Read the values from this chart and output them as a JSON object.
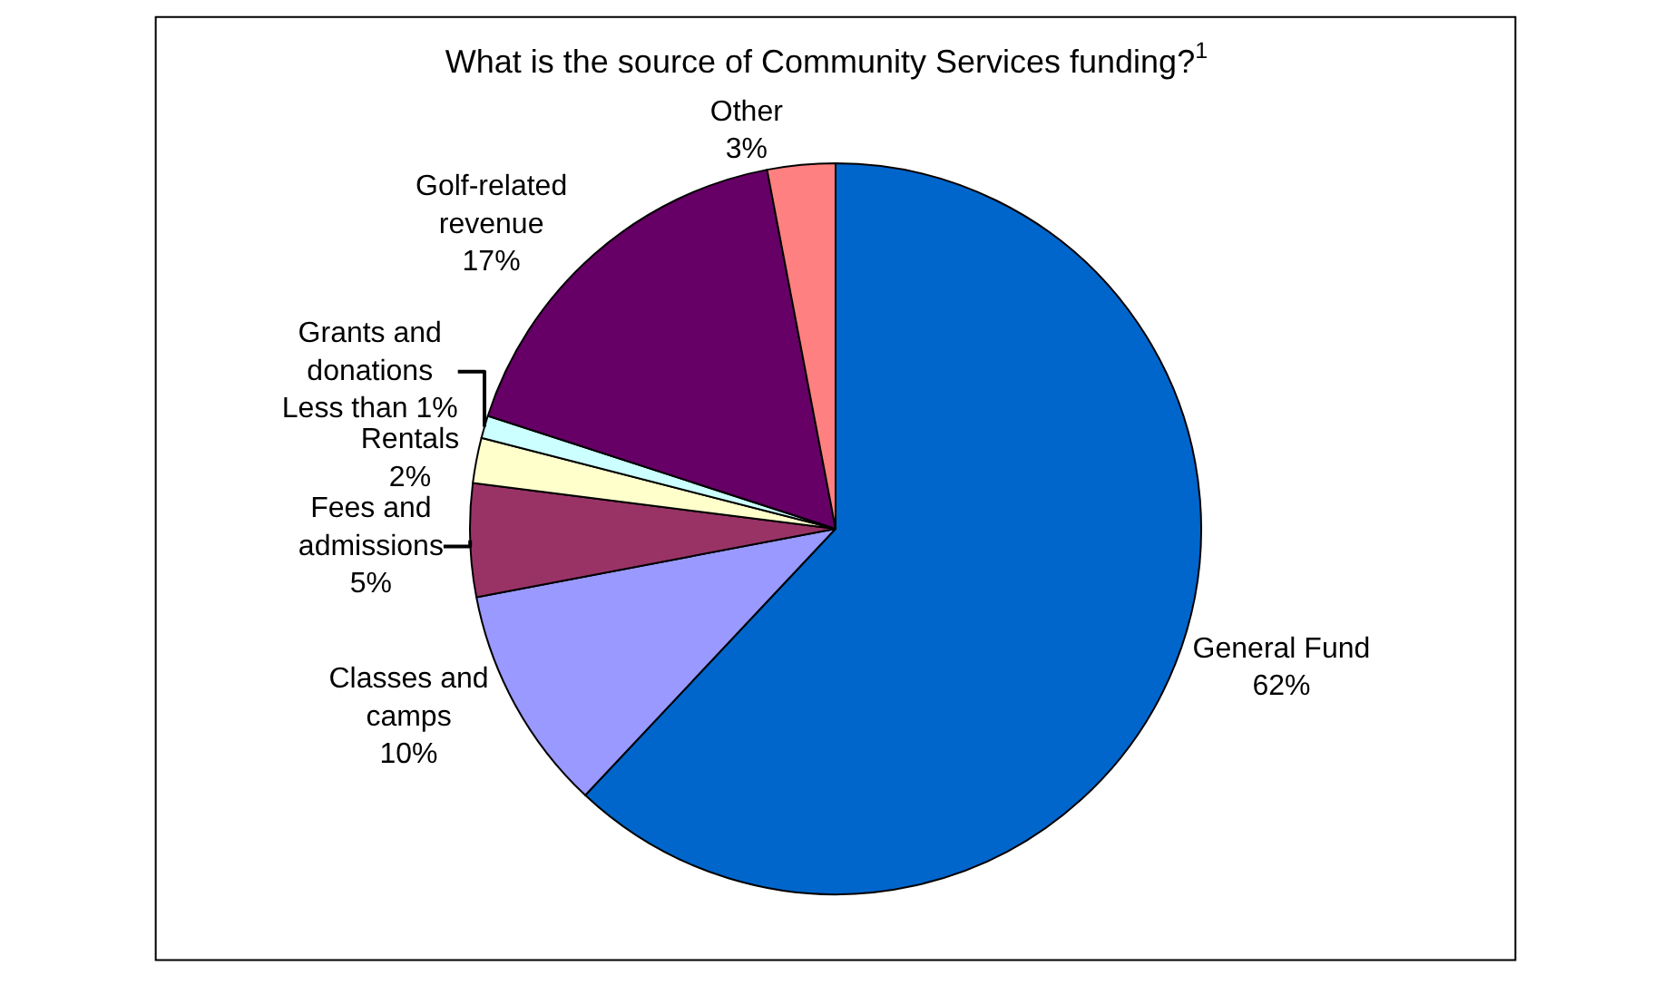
{
  "chart_data": {
    "type": "pie",
    "title": "What is the source of Community Services funding?$^{1}$",
    "categories": [
      "General Fund",
      "Classes and camps",
      "Fees and admissions",
      "Rentals",
      "Grants and donations",
      "Golf-related revenue",
      "Other"
    ],
    "values": [
      62,
      10,
      5,
      2,
      1,
      17,
      3
    ],
    "value_labels": [
      "62%",
      "10%",
      "5%",
      "2%",
      "Less than 1%",
      "17%",
      "3%"
    ],
    "colors": [
      "#0066cc",
      "#9999ff",
      "#993366",
      "#ffffcc",
      "#ccffff",
      "#660066",
      "#ff8080"
    ],
    "legend": false
  }
}
